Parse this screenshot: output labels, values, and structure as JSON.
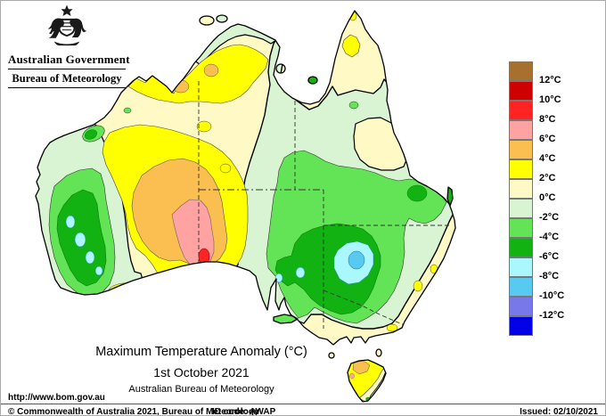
{
  "header": {
    "government": "Australian Government",
    "agency": "Bureau of Meteorology"
  },
  "map": {
    "title": "Maximum Temperature Anomaly (°C)",
    "date": "1st October 2021",
    "source": "Australian Bureau of Meteorology"
  },
  "legend": {
    "order": [
      "above12",
      "p10",
      "p8",
      "p6",
      "p4",
      "p2",
      "p0",
      "n2",
      "n4",
      "n6",
      "n8",
      "n10",
      "n12",
      "below12"
    ],
    "colors": {
      "above12": "#A8702E",
      "p10": "#CE0000",
      "p8": "#FF2424",
      "p6": "#FFA2A2",
      "p4": "#FBBE50",
      "p2": "#FFFF00",
      "p0": "#FFF9C6",
      "n2": "#D8F4D2",
      "n4": "#63E356",
      "n6": "#12B212",
      "n8": "#ABF7FF",
      "n10": "#58C9F0",
      "n12": "#7878EA",
      "below12": "#0000E6"
    },
    "tick_labels": [
      "12°C",
      "10°C",
      "8°C",
      "6°C",
      "4°C",
      "2°C",
      "0°C",
      "-2°C",
      "-4°C",
      "-6°C",
      "-8°C",
      "-10°C",
      "-12°C"
    ],
    "swatch_height": 22
  },
  "footer": {
    "url": "http://www.bom.gov.au",
    "copyright": "© Commonwealth of Australia 2021, Bureau of Meteorology",
    "id_code": "ID code: AWAP",
    "issued": "Issued: 02/10/2021"
  }
}
